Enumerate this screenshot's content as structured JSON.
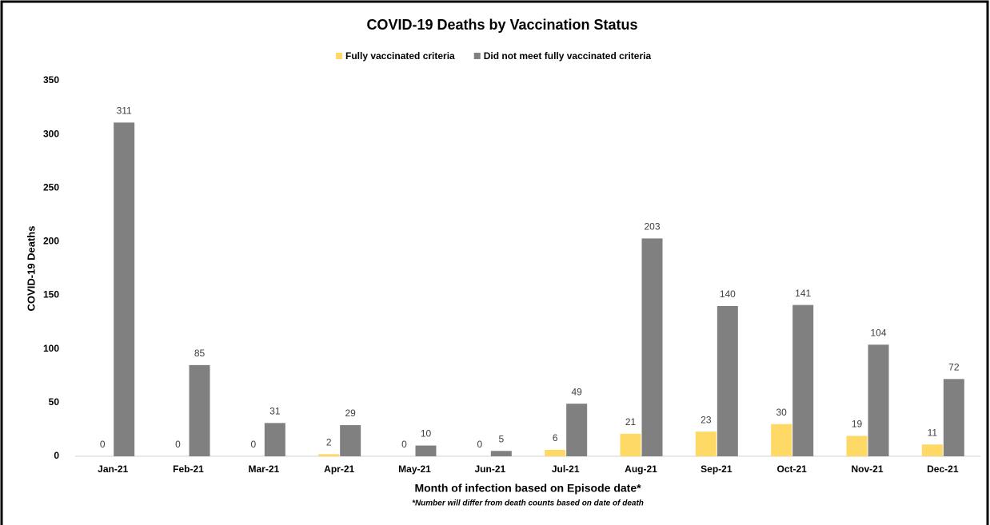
{
  "chart_data": {
    "type": "bar",
    "title": "COVID-19 Deaths by Vaccination Status",
    "x_label": "Month of infection based on Episode date*",
    "footnote": "*Number will differ from death counts based on date of death",
    "y_label": "COVID-19 Deaths",
    "categories": [
      "Jan-21",
      "Feb-21",
      "Mar-21",
      "Apr-21",
      "May-21",
      "Jun-21",
      "Jul-21",
      "Aug-21",
      "Sep-21",
      "Oct-21",
      "Nov-21",
      "Dec-21"
    ],
    "series": [
      {
        "name": "Fully vaccinated criteria",
        "color": "#ffd966",
        "values": [
          0,
          0,
          0,
          2,
          0,
          0,
          6,
          21,
          23,
          30,
          19,
          11
        ]
      },
      {
        "name": "Did not meet fully vaccinated criteria",
        "color": "#808080",
        "values": [
          311,
          85,
          31,
          29,
          10,
          5,
          49,
          203,
          140,
          141,
          104,
          72
        ]
      }
    ],
    "ylim": [
      0,
      350
    ],
    "yticks": [
      0,
      50,
      100,
      150,
      200,
      250,
      300,
      350
    ],
    "grid": false,
    "legend": "top"
  }
}
